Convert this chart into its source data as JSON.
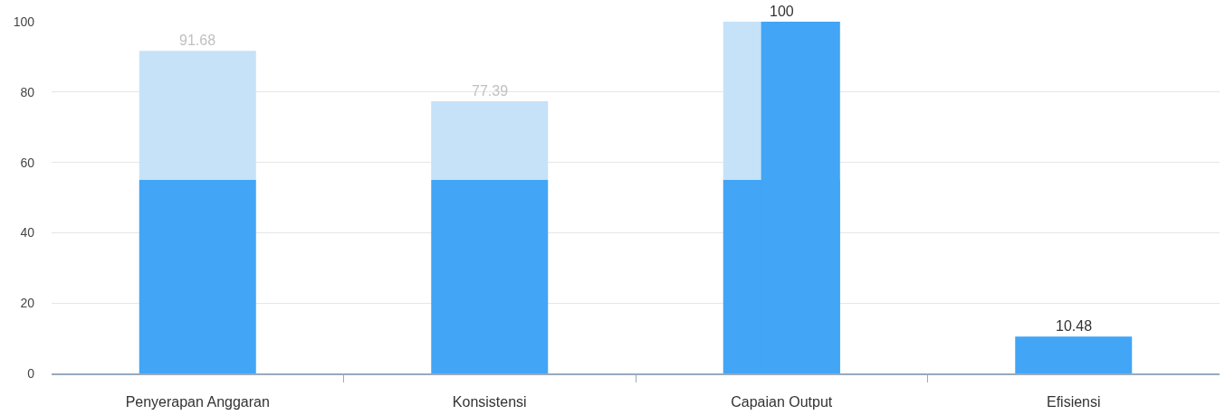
{
  "chart_data": {
    "type": "bar",
    "categories": [
      "Penyerapan Anggaran",
      "Konsistensi",
      "Capaian Output",
      "Efisiensi"
    ],
    "series": [
      {
        "color": "#c5e2f9",
        "base": [
          55,
          55,
          55,
          null
        ],
        "values": [
          36.68,
          22.39,
          45,
          null
        ],
        "value_labels": [
          "91.68",
          "77.39",
          null,
          null
        ]
      },
      {
        "color": "#42a5f5",
        "values": [
          55,
          55,
          55,
          10.48
        ],
        "value_labels": [
          null,
          null,
          null,
          "10.48"
        ]
      },
      {
        "color": "#42a5f5",
        "values": [
          null,
          null,
          100,
          null
        ],
        "value_labels": [
          null,
          null,
          "100",
          null
        ]
      }
    ],
    "ylim": [
      0,
      100
    ],
    "yticks": [
      0,
      20,
      40,
      60,
      80,
      100
    ],
    "grid": "y"
  }
}
